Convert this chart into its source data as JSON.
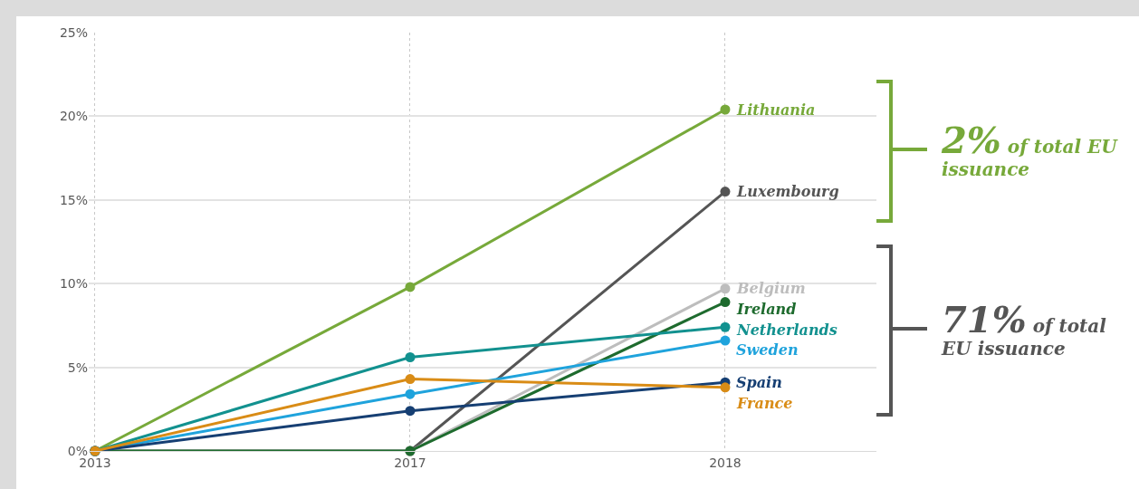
{
  "chart_data": {
    "type": "line",
    "categories": [
      "2013",
      "2017",
      "2018"
    ],
    "series": [
      {
        "name": "Lithuania",
        "color": "#77a93a",
        "values": [
          0,
          9.8,
          20.4
        ]
      },
      {
        "name": "Luxembourg",
        "color": "#555555",
        "values": [
          0,
          0,
          15.5
        ]
      },
      {
        "name": "Belgium",
        "color": "#bdbdbd",
        "values": [
          0,
          0,
          9.7
        ]
      },
      {
        "name": "Ireland",
        "color": "#1e6b2e",
        "values": [
          0,
          0,
          8.9
        ]
      },
      {
        "name": "Netherlands",
        "color": "#12918f",
        "values": [
          0,
          5.6,
          7.4
        ]
      },
      {
        "name": "Sweden",
        "color": "#1fa3dc",
        "values": [
          0,
          3.4,
          6.6
        ]
      },
      {
        "name": "Spain",
        "color": "#163f73",
        "values": [
          0,
          2.4,
          4.1
        ]
      },
      {
        "name": "France",
        "color": "#d98c16",
        "values": [
          0,
          4.3,
          3.8
        ]
      }
    ],
    "ylim": [
      0,
      25
    ],
    "yticks": [
      {
        "value": 0,
        "label": "0%"
      },
      {
        "value": 5,
        "label": "5%"
      },
      {
        "value": 10,
        "label": "10%"
      },
      {
        "value": 15,
        "label": "15%"
      },
      {
        "value": 20,
        "label": "20%"
      },
      {
        "value": 25,
        "label": "25%"
      }
    ],
    "grid": true,
    "marker": "circle",
    "line_style": "solid",
    "annotations": [
      "2% of total EU issuance",
      "71% of total EU issuance"
    ]
  }
}
